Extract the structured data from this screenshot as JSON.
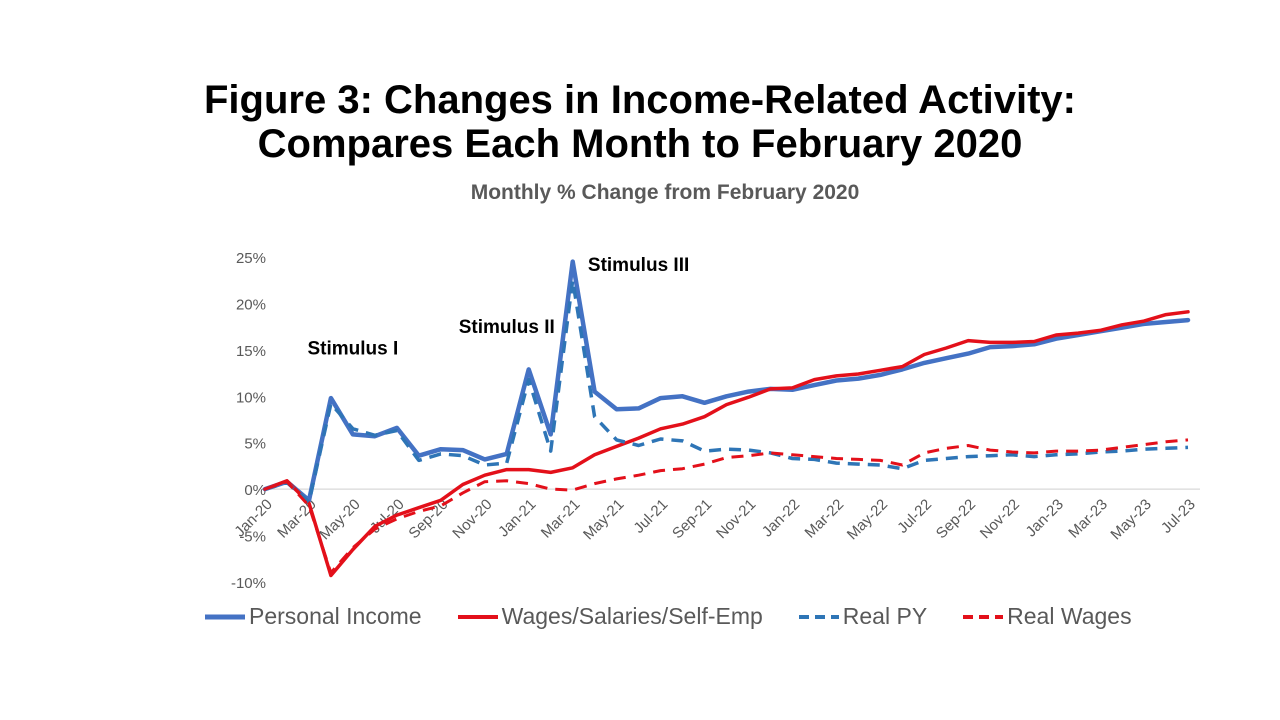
{
  "title_line1": "Figure 3: Changes in Income-Related Activity:",
  "title_line2": "Compares Each Month to February 2020",
  "subtitle": "Monthly % Change from February 2020",
  "colors": {
    "blue": "#4472C4",
    "blue_dash": "#2E75B6",
    "red": "#E3101A",
    "axis_text": "#595959",
    "axis_line": "#D9D9D9"
  },
  "chart_data": {
    "type": "line",
    "title": "Monthly % Change from February 2020",
    "x": [
      "Jan-20",
      "Feb-20",
      "Mar-20",
      "Apr-20",
      "May-20",
      "Jun-20",
      "Jul-20",
      "Aug-20",
      "Sep-20",
      "Oct-20",
      "Nov-20",
      "Dec-20",
      "Jan-21",
      "Feb-21",
      "Mar-21",
      "Apr-21",
      "May-21",
      "Jun-21",
      "Jul-21",
      "Aug-21",
      "Sep-21",
      "Oct-21",
      "Nov-21",
      "Dec-21",
      "Jan-22",
      "Feb-22",
      "Mar-22",
      "Apr-22",
      "May-22",
      "Jun-22",
      "Jul-22",
      "Aug-22",
      "Sep-22",
      "Oct-22",
      "Nov-22",
      "Dec-22",
      "Jan-23",
      "Feb-23",
      "Mar-23",
      "Apr-23",
      "May-23",
      "Jun-23",
      "Jul-23"
    ],
    "x_tick_labels": [
      "Jan-20",
      "Mar-20",
      "May-20",
      "Jul-20",
      "Sep-20",
      "Nov-20",
      "Jan-21",
      "Mar-21",
      "May-21",
      "Jul-21",
      "Sep-21",
      "Nov-21",
      "Jan-22",
      "Mar-22",
      "May-22",
      "Jul-22",
      "Sep-22",
      "Nov-22",
      "Jan-23",
      "Mar-23",
      "May-23",
      "Jul-23"
    ],
    "y_tick_labels": [
      "25%",
      "20%",
      "15%",
      "10%",
      "5%",
      "0%",
      "-5%",
      "-10%"
    ],
    "y_ticks": [
      25,
      20,
      15,
      10,
      5,
      0,
      -5,
      -10
    ],
    "ylim": [
      -10,
      25
    ],
    "grid": false,
    "legend_position": "bottom",
    "series": [
      {
        "name": "Personal Income",
        "style": "solid",
        "color": "#4472C4",
        "values": [
          0,
          0.8,
          -1.2,
          9.8,
          5.9,
          5.7,
          6.6,
          3.6,
          4.3,
          4.2,
          3.2,
          3.8,
          12.9,
          5.9,
          24.5,
          10.5,
          8.6,
          8.7,
          9.8,
          10.0,
          9.3,
          10.0,
          10.5,
          10.8,
          10.7,
          11.2,
          11.7,
          11.9,
          12.3,
          12.9,
          13.6,
          14.1,
          14.6,
          15.3,
          15.4,
          15.6,
          16.2,
          16.6,
          17.0,
          17.4,
          17.8,
          18.0,
          18.2
        ]
      },
      {
        "name": "Wages/Salaries/Self-Emp",
        "style": "solid",
        "color": "#E3101A",
        "values": [
          0,
          0.9,
          -1.5,
          -9.3,
          -6.5,
          -4.0,
          -2.8,
          -2.0,
          -1.2,
          0.5,
          1.5,
          2.1,
          2.1,
          1.8,
          2.3,
          3.7,
          4.6,
          5.5,
          6.5,
          7.0,
          7.8,
          9.1,
          9.9,
          10.8,
          10.9,
          11.8,
          12.2,
          12.4,
          12.8,
          13.2,
          14.5,
          15.2,
          16.0,
          15.8,
          15.8,
          15.9,
          16.6,
          16.8,
          17.1,
          17.7,
          18.1,
          18.8,
          19.1
        ]
      },
      {
        "name": "Real PY",
        "style": "dashed",
        "color": "#2E75B6",
        "values": [
          0,
          0.7,
          -1.4,
          9.2,
          6.5,
          5.8,
          6.3,
          3.1,
          3.8,
          3.6,
          2.6,
          2.8,
          11.8,
          4.1,
          22.5,
          7.8,
          5.3,
          4.7,
          5.4,
          5.2,
          4.1,
          4.3,
          4.2,
          3.9,
          3.3,
          3.2,
          2.8,
          2.7,
          2.6,
          2.2,
          3.1,
          3.3,
          3.5,
          3.6,
          3.7,
          3.5,
          3.7,
          3.8,
          4.0,
          4.1,
          4.3,
          4.4,
          4.5
        ]
      },
      {
        "name": "Real Wages",
        "style": "dashed",
        "color": "#E3101A",
        "values": [
          0,
          0.8,
          -1.8,
          -9.0,
          -6.3,
          -4.3,
          -3.2,
          -2.4,
          -1.8,
          -0.4,
          0.8,
          0.9,
          0.6,
          0,
          -0.1,
          0.6,
          1.1,
          1.5,
          2.0,
          2.2,
          2.7,
          3.4,
          3.6,
          3.9,
          3.7,
          3.5,
          3.3,
          3.2,
          3.1,
          2.6,
          3.9,
          4.4,
          4.7,
          4.2,
          4.0,
          3.9,
          4.1,
          4.1,
          4.2,
          4.5,
          4.8,
          5.1,
          5.3
        ]
      }
    ],
    "annotations": [
      {
        "text": "Stimulus I",
        "x": "May-20",
        "y": 14.5
      },
      {
        "text": "Stimulus II",
        "x": "Dec-20",
        "y": 16.8
      },
      {
        "text": "Stimulus III",
        "x": "Jun-21",
        "y": 23.5
      }
    ]
  }
}
